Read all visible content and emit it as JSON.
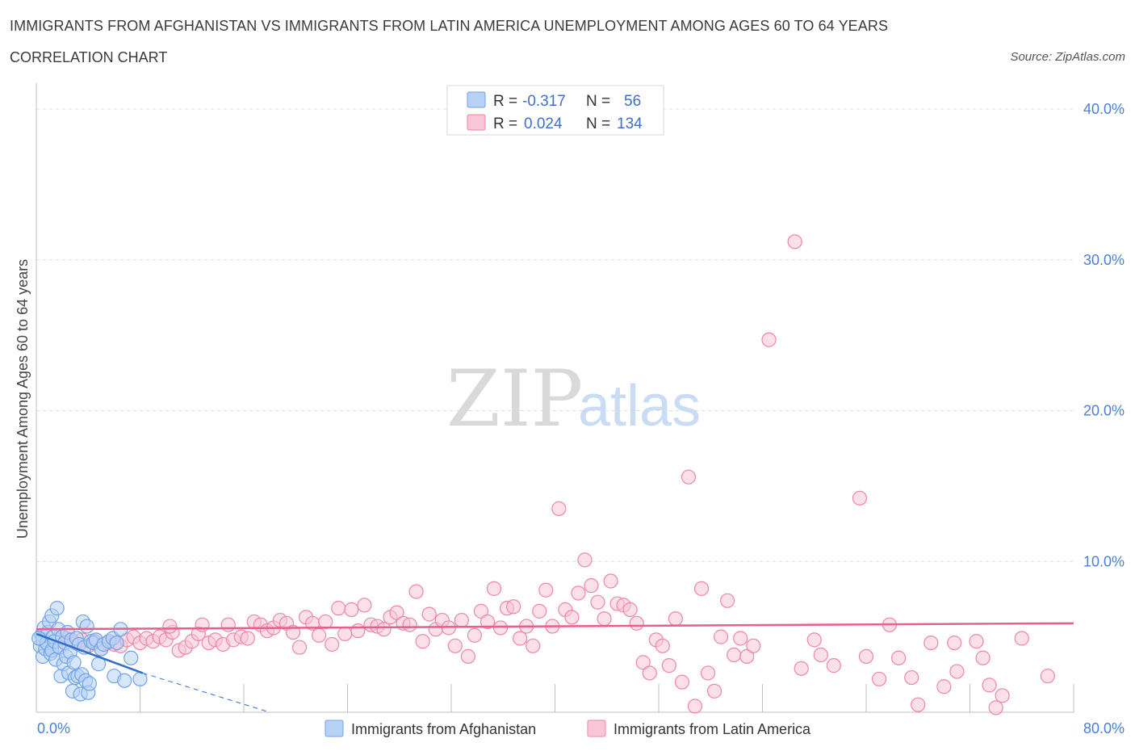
{
  "title": "IMMIGRANTS FROM AFGHANISTAN VS IMMIGRANTS FROM LATIN AMERICA UNEMPLOYMENT AMONG AGES 60 TO 64 YEARS",
  "subtitle": "CORRELATION CHART",
  "source": "Source: ZipAtlas.com",
  "watermark": {
    "zip": "ZIP",
    "atlas": "atlas"
  },
  "legend": {
    "rows": [
      {
        "r_label": "R =",
        "r_value": "-0.317",
        "n_label": "N =",
        "n_value": "56"
      },
      {
        "r_label": "R =",
        "r_value": "0.024",
        "n_label": "N =",
        "n_value": "134"
      }
    ]
  },
  "colors": {
    "afghanistan": "#6fa3e8",
    "afghanistan_fill": "#b8d2f5",
    "afghanistan_line": "#2f6fce",
    "latin_america": "#ee86a6",
    "latin_america_fill": "#f8c6d6",
    "latin_america_line": "#e75f8d",
    "tick_label": "#4a7fd6",
    "grid": "#dddddd"
  },
  "chart_data": {
    "type": "scatter",
    "xlabel": "",
    "ylabel": "Unemployment Among Ages 60 to 64 years",
    "xlim": [
      0,
      80
    ],
    "ylim": [
      0,
      40
    ],
    "x_tick_labels": [
      "0.0%",
      "80.0%"
    ],
    "y_ticks": [
      10,
      20,
      30,
      40
    ],
    "y_tick_labels": [
      "10.0%",
      "20.0%",
      "30.0%",
      "40.0%"
    ],
    "grid": true,
    "legend_position": "bottom",
    "series": [
      {
        "name": "Immigrants from Afghanistan",
        "color": "#6fa3e8",
        "trend": {
          "x": [
            0,
            8.2
          ],
          "y": [
            5.2,
            2.6
          ],
          "dashed_to": [
            18.0,
            0.0
          ]
        },
        "points": [
          [
            0.3,
            4.4
          ],
          [
            0.4,
            5.1
          ],
          [
            0.5,
            3.7
          ],
          [
            0.5,
            4.8
          ],
          [
            0.6,
            5.6
          ],
          [
            0.7,
            4.2
          ],
          [
            0.8,
            4.6
          ],
          [
            0.9,
            5.3
          ],
          [
            1.0,
            6.0
          ],
          [
            1.1,
            3.9
          ],
          [
            1.2,
            4.1
          ],
          [
            1.2,
            6.4
          ],
          [
            1.3,
            5.0
          ],
          [
            1.4,
            4.7
          ],
          [
            1.5,
            3.5
          ],
          [
            1.6,
            6.9
          ],
          [
            1.7,
            5.5
          ],
          [
            1.8,
            4.3
          ],
          [
            1.9,
            2.4
          ],
          [
            2.0,
            5.0
          ],
          [
            2.1,
            3.2
          ],
          [
            2.2,
            4.6
          ],
          [
            2.3,
            3.7
          ],
          [
            2.4,
            5.3
          ],
          [
            2.5,
            2.6
          ],
          [
            2.6,
            4.0
          ],
          [
            2.7,
            4.8
          ],
          [
            2.8,
            1.4
          ],
          [
            2.9,
            3.3
          ],
          [
            3.0,
            2.3
          ],
          [
            3.1,
            4.9
          ],
          [
            3.2,
            2.4
          ],
          [
            3.3,
            4.5
          ],
          [
            3.4,
            1.2
          ],
          [
            3.5,
            2.5
          ],
          [
            3.6,
            6.0
          ],
          [
            3.7,
            4.3
          ],
          [
            3.8,
            2.1
          ],
          [
            3.9,
            5.7
          ],
          [
            4.0,
            1.3
          ],
          [
            4.1,
            1.9
          ],
          [
            4.2,
            4.7
          ],
          [
            4.4,
            4.6
          ],
          [
            4.6,
            4.8
          ],
          [
            4.8,
            3.2
          ],
          [
            5.0,
            4.2
          ],
          [
            5.2,
            4.5
          ],
          [
            5.6,
            4.7
          ],
          [
            5.9,
            4.9
          ],
          [
            6.0,
            2.4
          ],
          [
            6.2,
            4.6
          ],
          [
            6.5,
            5.5
          ],
          [
            6.8,
            2.1
          ],
          [
            7.3,
            3.6
          ],
          [
            8.0,
            2.2
          ],
          [
            0.2,
            4.9
          ]
        ]
      },
      {
        "name": "Immigrants from Latin America",
        "color": "#ee86a6",
        "trend": {
          "x": [
            0,
            80
          ],
          "y": [
            5.5,
            5.9
          ]
        },
        "points": [
          [
            0.8,
            4.5
          ],
          [
            1.5,
            4.3
          ],
          [
            2.3,
            4.9
          ],
          [
            3.0,
            4.6
          ],
          [
            3.5,
            4.8
          ],
          [
            4.0,
            4.4
          ],
          [
            4.5,
            4.7
          ],
          [
            5.0,
            4.2
          ],
          [
            5.5,
            4.6
          ],
          [
            6.0,
            4.5
          ],
          [
            6.5,
            4.4
          ],
          [
            7.0,
            4.8
          ],
          [
            7.5,
            5.0
          ],
          [
            8.0,
            4.6
          ],
          [
            8.5,
            4.9
          ],
          [
            9.0,
            4.7
          ],
          [
            9.5,
            5.0
          ],
          [
            10.0,
            4.8
          ],
          [
            10.5,
            5.3
          ],
          [
            10.3,
            5.7
          ],
          [
            11.0,
            4.1
          ],
          [
            11.5,
            4.3
          ],
          [
            12.0,
            4.7
          ],
          [
            12.5,
            5.2
          ],
          [
            12.8,
            5.8
          ],
          [
            13.3,
            4.6
          ],
          [
            13.8,
            4.8
          ],
          [
            14.4,
            4.5
          ],
          [
            14.8,
            5.8
          ],
          [
            15.2,
            4.8
          ],
          [
            15.8,
            5.0
          ],
          [
            16.3,
            4.9
          ],
          [
            16.8,
            6.0
          ],
          [
            17.3,
            5.8
          ],
          [
            17.8,
            5.4
          ],
          [
            18.3,
            5.6
          ],
          [
            18.8,
            6.1
          ],
          [
            19.3,
            5.9
          ],
          [
            19.8,
            5.3
          ],
          [
            20.3,
            4.3
          ],
          [
            20.8,
            6.3
          ],
          [
            21.3,
            5.9
          ],
          [
            21.8,
            5.1
          ],
          [
            22.3,
            6.0
          ],
          [
            22.8,
            4.5
          ],
          [
            23.3,
            6.9
          ],
          [
            23.8,
            5.2
          ],
          [
            24.3,
            6.8
          ],
          [
            24.8,
            5.4
          ],
          [
            25.3,
            7.1
          ],
          [
            25.8,
            5.8
          ],
          [
            26.3,
            5.7
          ],
          [
            26.8,
            5.5
          ],
          [
            27.3,
            6.3
          ],
          [
            27.8,
            6.6
          ],
          [
            28.3,
            5.9
          ],
          [
            28.8,
            5.8
          ],
          [
            29.3,
            8.0
          ],
          [
            29.8,
            4.7
          ],
          [
            30.3,
            6.5
          ],
          [
            30.8,
            5.5
          ],
          [
            31.3,
            6.1
          ],
          [
            31.8,
            5.6
          ],
          [
            32.3,
            4.4
          ],
          [
            32.8,
            6.1
          ],
          [
            33.3,
            3.7
          ],
          [
            33.8,
            5.1
          ],
          [
            34.3,
            6.7
          ],
          [
            34.8,
            6.0
          ],
          [
            35.3,
            8.2
          ],
          [
            35.8,
            5.6
          ],
          [
            36.3,
            6.9
          ],
          [
            36.8,
            7.0
          ],
          [
            37.3,
            4.9
          ],
          [
            37.8,
            5.7
          ],
          [
            38.3,
            4.4
          ],
          [
            38.8,
            6.7
          ],
          [
            39.3,
            8.1
          ],
          [
            39.8,
            5.7
          ],
          [
            40.3,
            13.5
          ],
          [
            40.8,
            6.8
          ],
          [
            41.3,
            6.3
          ],
          [
            41.8,
            7.9
          ],
          [
            42.3,
            10.1
          ],
          [
            42.8,
            8.4
          ],
          [
            43.3,
            7.3
          ],
          [
            43.8,
            6.2
          ],
          [
            44.3,
            8.7
          ],
          [
            44.8,
            7.2
          ],
          [
            45.3,
            7.1
          ],
          [
            45.8,
            6.8
          ],
          [
            46.3,
            5.9
          ],
          [
            46.8,
            3.3
          ],
          [
            47.3,
            2.6
          ],
          [
            47.8,
            4.8
          ],
          [
            48.3,
            4.4
          ],
          [
            48.8,
            3.1
          ],
          [
            49.3,
            6.2
          ],
          [
            49.8,
            2.0
          ],
          [
            50.3,
            15.6
          ],
          [
            50.8,
            0.4
          ],
          [
            51.3,
            8.2
          ],
          [
            51.8,
            2.6
          ],
          [
            52.3,
            1.4
          ],
          [
            52.8,
            5.0
          ],
          [
            53.3,
            7.4
          ],
          [
            53.8,
            3.8
          ],
          [
            54.3,
            4.9
          ],
          [
            54.8,
            3.7
          ],
          [
            55.3,
            4.4
          ],
          [
            56.5,
            24.7
          ],
          [
            58.5,
            31.2
          ],
          [
            59.0,
            2.9
          ],
          [
            60.0,
            4.8
          ],
          [
            60.5,
            3.8
          ],
          [
            61.5,
            3.1
          ],
          [
            63.5,
            14.2
          ],
          [
            64.0,
            3.7
          ],
          [
            65.0,
            2.2
          ],
          [
            65.8,
            5.8
          ],
          [
            66.5,
            3.6
          ],
          [
            67.5,
            2.3
          ],
          [
            68.0,
            0.5
          ],
          [
            69.0,
            4.6
          ],
          [
            70.0,
            1.7
          ],
          [
            71.0,
            2.7
          ],
          [
            72.5,
            4.7
          ],
          [
            73.0,
            3.6
          ],
          [
            73.5,
            1.8
          ],
          [
            74.5,
            1.1
          ],
          [
            74.0,
            0.3
          ],
          [
            78.0,
            2.4
          ],
          [
            70.8,
            4.6
          ],
          [
            76.0,
            4.9
          ]
        ]
      }
    ]
  },
  "bottom_legend": {
    "items": [
      "Immigrants from Afghanistan",
      "Immigrants from Latin America"
    ]
  }
}
